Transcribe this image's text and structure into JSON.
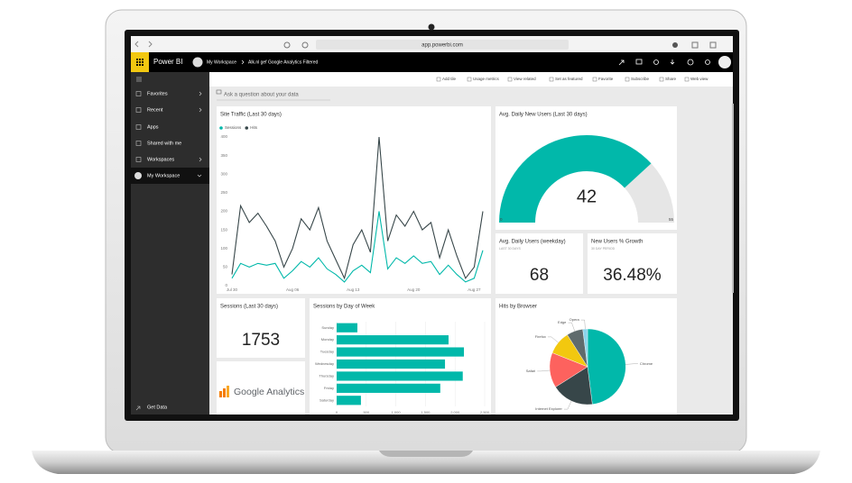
{
  "browser": {
    "url": "app.powerbi.com"
  },
  "header": {
    "app": "Power BI",
    "breadcrumb": [
      "My Workspace",
      "Alk.nl gef Google Analytics Filtered"
    ]
  },
  "toolbar": [
    "Add tile",
    "Usage metrics",
    "View related",
    "Set as featured",
    "Favorite",
    "Subscribe",
    "Share",
    "Web view"
  ],
  "nav": [
    "Favorites",
    "Recent",
    "Apps",
    "Shared with me",
    "Workspaces",
    "My Workspace"
  ],
  "nav_footer": "Get Data",
  "qa_placeholder": "Ask a question about your data",
  "cards": [
    {
      "title": "Avg. Daily Users (weekday)",
      "subtitle": "LAST 30 DAYS",
      "value": 68
    },
    {
      "title": "New Users % Growth",
      "subtitle": "30 DAY PERIOD",
      "value": 36.48,
      "value_label": "36.48%"
    },
    {
      "title": "Sessions (Last 30 days)",
      "value": 1753
    }
  ],
  "logo": "Google Analytics",
  "chart_data": [
    {
      "type": "line",
      "title": "Site Traffic (Last 30 days)",
      "categories": [
        "Jul 30",
        null,
        null,
        null,
        null,
        null,
        null,
        "Aug 06",
        null,
        null,
        null,
        null,
        null,
        null,
        "Aug 13",
        null,
        null,
        null,
        null,
        null,
        null,
        "Aug 20",
        null,
        null,
        null,
        null,
        null,
        null,
        "Aug 27",
        null
      ],
      "series": [
        {
          "name": "Sessions",
          "color": "#01b8aa",
          "values": [
            20,
            60,
            50,
            60,
            55,
            60,
            20,
            40,
            65,
            50,
            75,
            45,
            30,
            10,
            40,
            55,
            35,
            200,
            45,
            75,
            60,
            80,
            60,
            65,
            30,
            55,
            30,
            10,
            20,
            95
          ]
        },
        {
          "name": "Hits",
          "color": "#374649",
          "values": [
            30,
            215,
            170,
            195,
            160,
            120,
            50,
            100,
            180,
            150,
            210,
            120,
            70,
            20,
            110,
            150,
            90,
            400,
            120,
            190,
            160,
            200,
            150,
            170,
            75,
            150,
            80,
            20,
            50,
            200
          ]
        }
      ],
      "ylim": [
        0,
        400
      ],
      "yticks": [
        0,
        50,
        100,
        150,
        200,
        250,
        300,
        350,
        400
      ]
    },
    {
      "type": "gauge",
      "title": "Avg. Daily New Users (Last 30 days)",
      "value": 42,
      "min": 0,
      "max": 55,
      "color": "#01b8aa",
      "track_color": "#e6e6e6"
    },
    {
      "type": "bar",
      "title": "Sessions by Day of Week",
      "categories": [
        "Sunday",
        "Monday",
        "Tuesday",
        "Wednesday",
        "Thursday",
        "Friday",
        "Saturday"
      ],
      "values": [
        350,
        1890,
        2150,
        1830,
        2130,
        1750,
        410
      ],
      "color": "#01b8aa",
      "xlim": [
        0,
        2500
      ],
      "xticks": [
        0,
        500,
        {
          "value": 1000,
          "label": "1,000"
        },
        {
          "value": 1500,
          "label": "1,500"
        },
        {
          "value": 2000,
          "label": "2,000"
        },
        {
          "value": 2500,
          "label": "2,500"
        }
      ],
      "grid": true
    },
    {
      "type": "pie",
      "title": "Hits by Browser",
      "categories": [
        "Chrome",
        "Internet Explorer",
        "Safari",
        "Firefox",
        "Edge",
        "Opera"
      ],
      "values": [
        48,
        18,
        15,
        10,
        7,
        2
      ],
      "colors": [
        "#01b8aa",
        "#374649",
        "#fd625e",
        "#f2c80f",
        "#5f6b6d",
        "#8ad4eb"
      ]
    }
  ]
}
